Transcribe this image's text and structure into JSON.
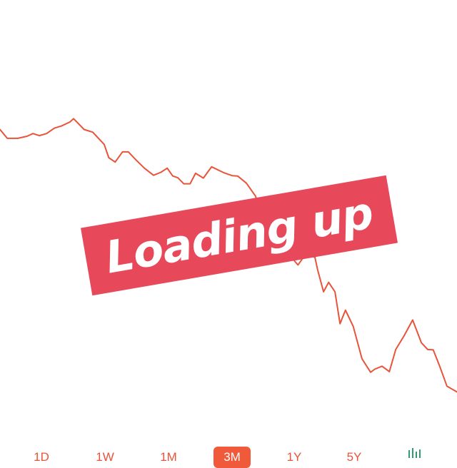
{
  "chart_data": {
    "type": "line",
    "title": "",
    "xlabel": "",
    "ylabel": "",
    "grid": false,
    "line_color": "#e8543a",
    "xlim": [
      0,
      100
    ],
    "ylim": [
      0,
      100
    ],
    "x": [
      0,
      1.6,
      3.9,
      5.9,
      7.2,
      8.6,
      10.2,
      11.9,
      13.4,
      15.3,
      16.1,
      18.4,
      20.3,
      22.8,
      23.8,
      25.2,
      26.8,
      28.1,
      29.7,
      31.6,
      33.6,
      35.2,
      36.6,
      37.8,
      38.9,
      40.2,
      41.6,
      42.8,
      44.5,
      46.3,
      48.9,
      50.8,
      52,
      53.9,
      55.9,
      57.5,
      59.2,
      61.3,
      62.3,
      63.9,
      65.2,
      66.8,
      68.9,
      69.5,
      70.8,
      71.9,
      73.3,
      74.4,
      75.6,
      77.3,
      79.2,
      81.1,
      82,
      83.6,
      85.2,
      86.6,
      88.4,
      90.3,
      92.2,
      93.6,
      94.8,
      96.3,
      97.8,
      100
    ],
    "y": [
      79.1,
      76.5,
      76.5,
      77.1,
      77.9,
      77.3,
      77.9,
      79.5,
      80.1,
      81.3,
      82.3,
      79.1,
      78.3,
      74.7,
      70.8,
      69.5,
      72.5,
      72.5,
      70.2,
      67.7,
      65.6,
      66.5,
      67.7,
      65.4,
      64.9,
      63.1,
      63.1,
      66.2,
      64.8,
      68.1,
      66.4,
      65.5,
      65.4,
      63.3,
      59.5,
      53.4,
      49.7,
      47.7,
      45.5,
      41.2,
      39.2,
      42.2,
      41.5,
      37.8,
      31.3,
      34.1,
      31.3,
      21.9,
      25.9,
      21.1,
      11.6,
      7.6,
      8.5,
      9.4,
      7.8,
      14.3,
      18.3,
      23,
      16.3,
      14.3,
      14.2,
      9.1,
      3.5,
      1.8
    ]
  },
  "stamp": {
    "text": "Loading up",
    "color": "#e8495a"
  },
  "range_selector": {
    "tabs": [
      {
        "label": "1D",
        "active": false
      },
      {
        "label": "1W",
        "active": false
      },
      {
        "label": "1M",
        "active": false
      },
      {
        "label": "3M",
        "active": true
      },
      {
        "label": "1Y",
        "active": false
      },
      {
        "label": "5Y",
        "active": false
      }
    ],
    "accent_color": "#f05a3a",
    "toggle_icon": "candlestick-icon",
    "toggle_color": "#2e9e72"
  }
}
